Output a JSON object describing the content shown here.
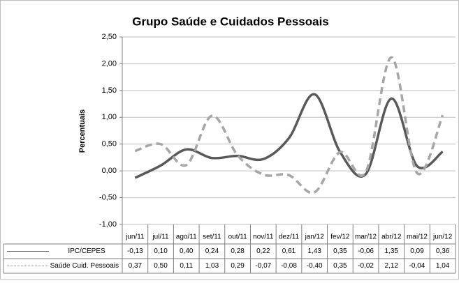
{
  "chart_data": {
    "type": "line",
    "title": "Grupo Saúde e Cuidados Pessoais",
    "y_label": "Percentuais",
    "categories": [
      "jun/11",
      "jul/11",
      "ago/11",
      "set/11",
      "out/11",
      "nov/11",
      "dez/11",
      "jan/12",
      "fev/12",
      "mar/12",
      "abr/12",
      "mai/12",
      "jun/12"
    ],
    "series": [
      {
        "name": "IPC/CEPES",
        "color": "#595959",
        "dashed": false,
        "values": [
          -0.13,
          0.1,
          0.4,
          0.24,
          0.28,
          0.22,
          0.61,
          1.43,
          0.35,
          -0.06,
          1.35,
          0.09,
          0.36
        ],
        "value_labels": [
          "-0,13",
          "0,10",
          "0,40",
          "0,24",
          "0,28",
          "0,22",
          "0,61",
          "1,43",
          "0,35",
          "-0,06",
          "1,35",
          "0,09",
          "0,36"
        ]
      },
      {
        "name": "Saúde Cuid. Pessoais",
        "color": "#a6a6a6",
        "dashed": true,
        "values": [
          0.37,
          0.5,
          0.11,
          1.03,
          0.29,
          -0.07,
          -0.08,
          -0.4,
          0.35,
          -0.02,
          2.12,
          -0.04,
          1.04
        ],
        "value_labels": [
          "0,37",
          "0,50",
          "0,11",
          "1,03",
          "0,29",
          "-0,07",
          "-0,08",
          "-0,40",
          "0,35",
          "-0,02",
          "2,12",
          "-0,04",
          "1,04"
        ]
      }
    ],
    "ylim": [
      -1,
      2.5
    ],
    "yticks": [
      {
        "value": -1,
        "label": "-1,00"
      },
      {
        "value": -0.5,
        "label": "-0,50"
      },
      {
        "value": 0,
        "label": "0,00"
      },
      {
        "value": 0.5,
        "label": "0,50"
      },
      {
        "value": 1,
        "label": "1,00"
      },
      {
        "value": 1.5,
        "label": "1,50"
      },
      {
        "value": 2,
        "label": "2,00"
      },
      {
        "value": 2.5,
        "label": "2,50"
      }
    ],
    "grid": true,
    "smooth": true,
    "data_table": true
  }
}
